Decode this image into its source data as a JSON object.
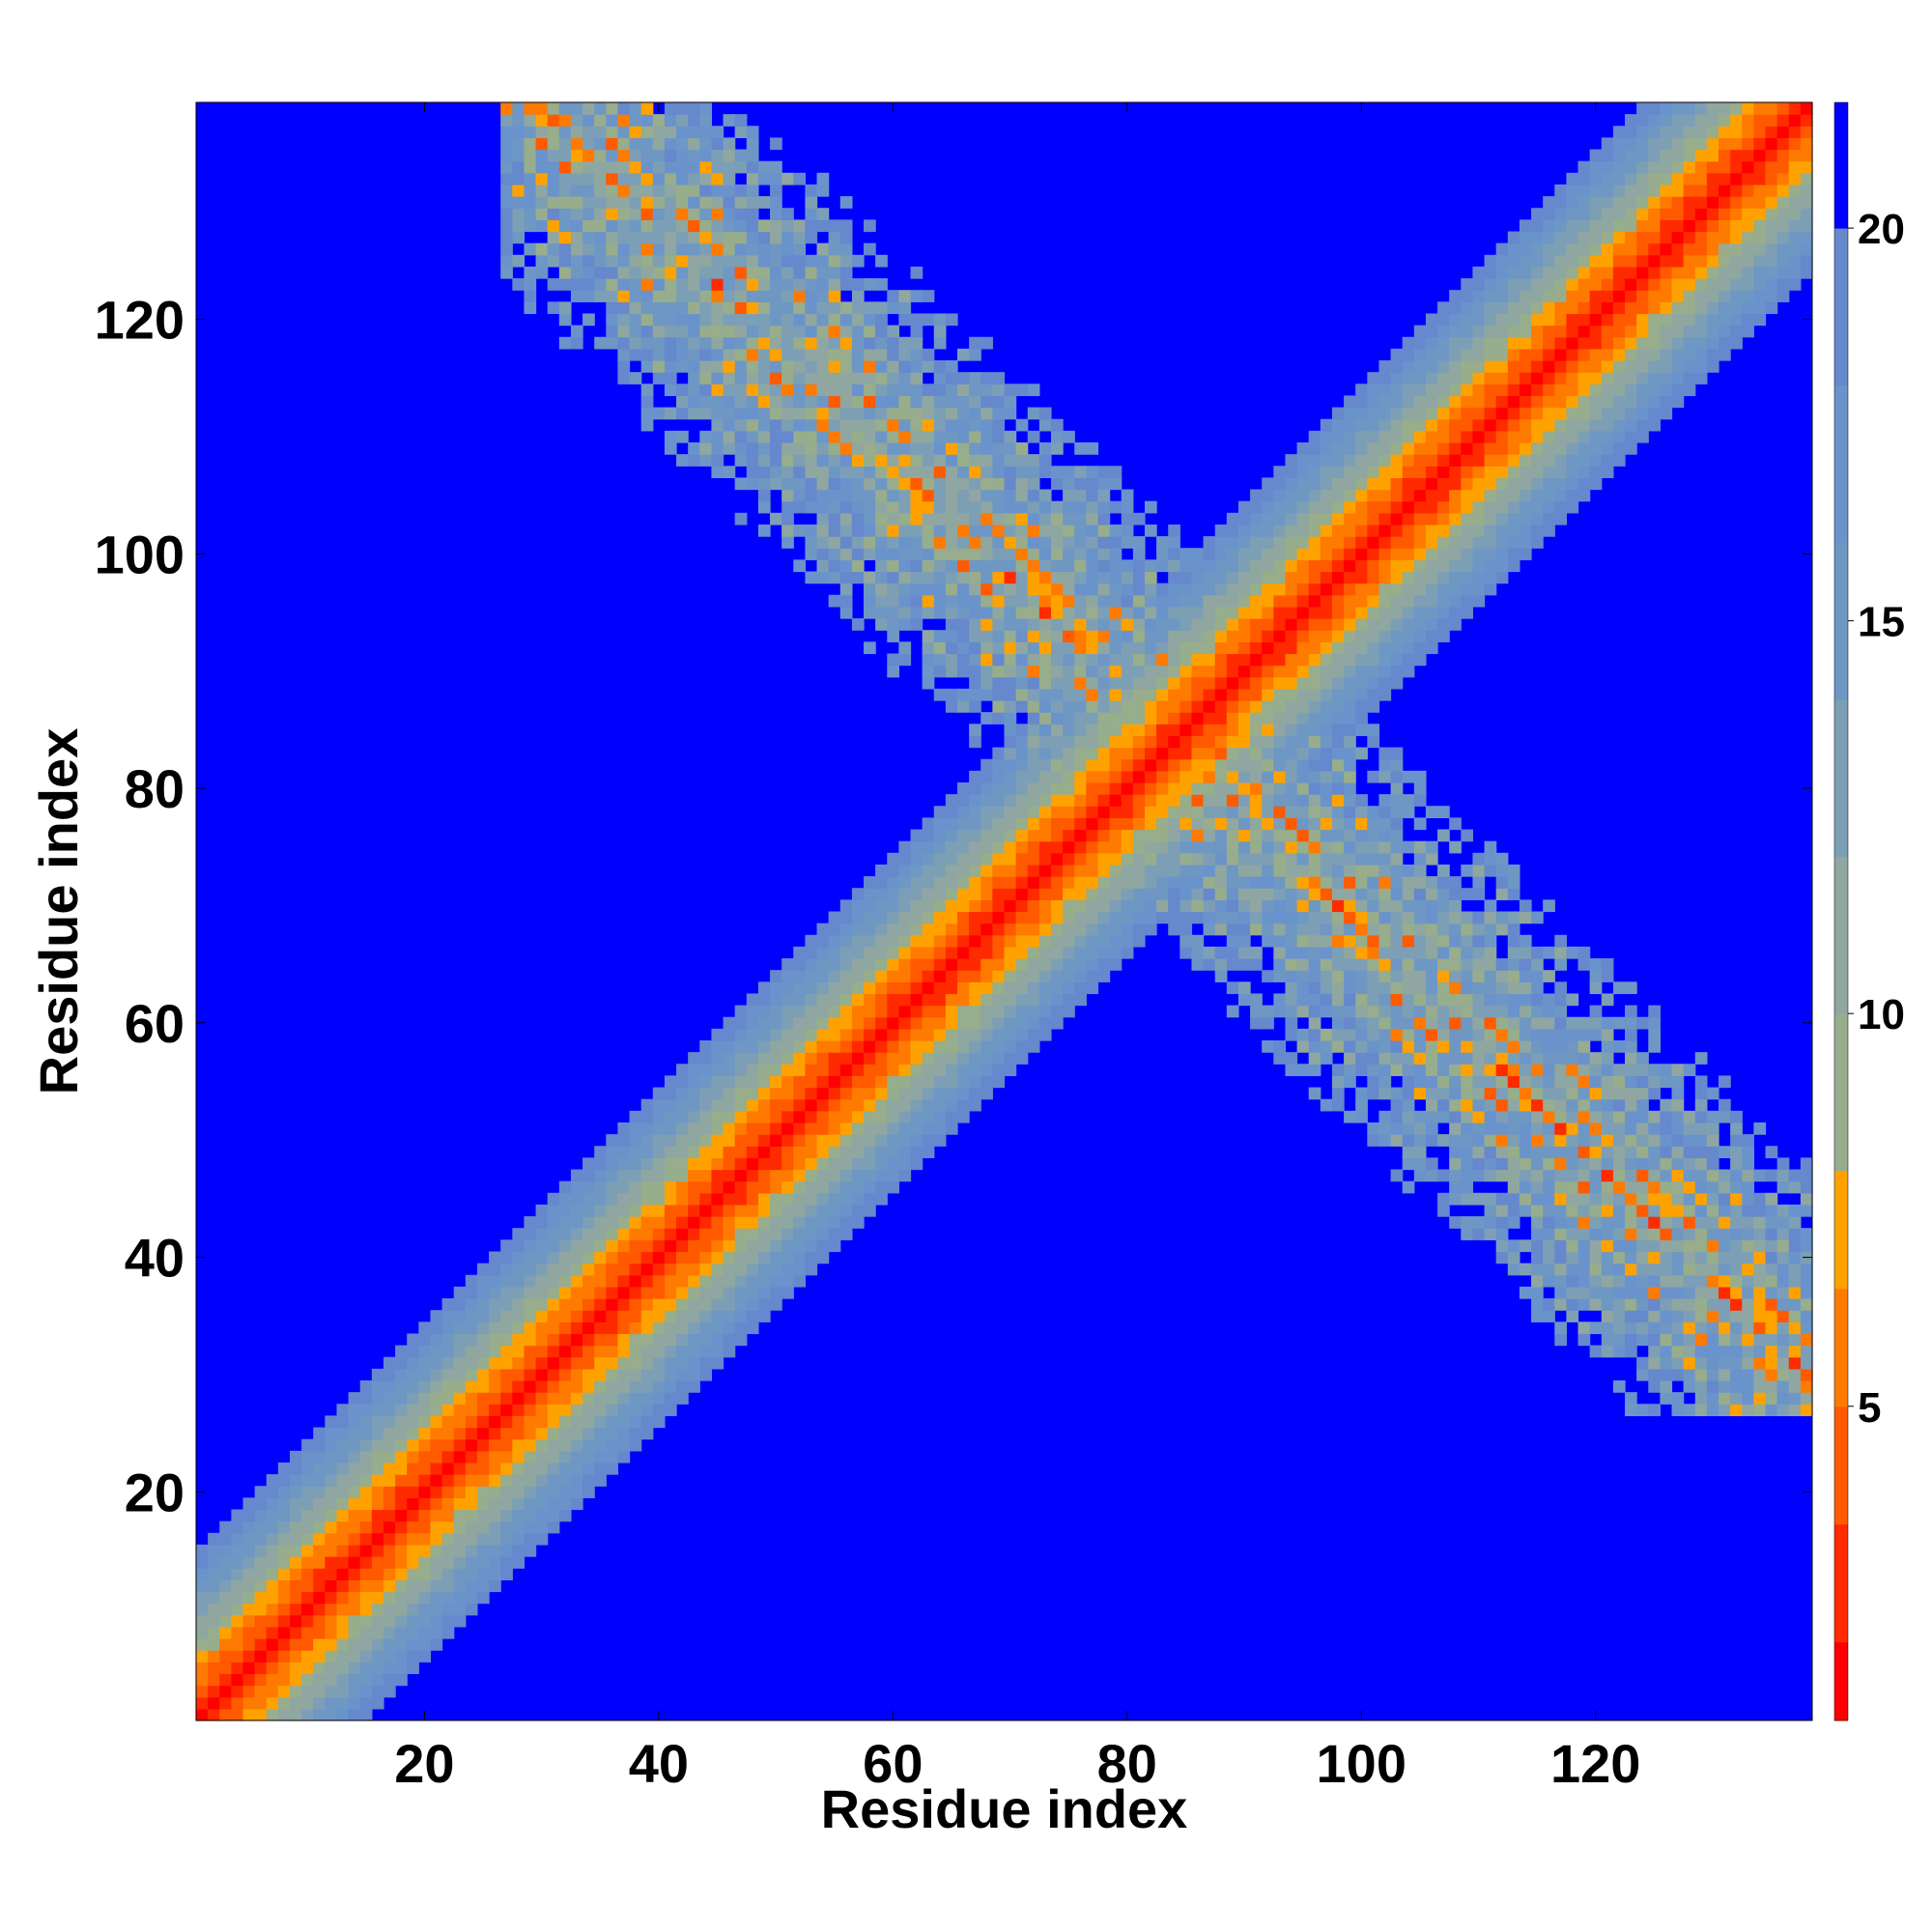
{
  "chart_data": {
    "type": "heatmap",
    "title": "",
    "xlabel": "Residue index",
    "ylabel": "Residue index",
    "x_range": [
      1,
      138
    ],
    "y_range": [
      1,
      138
    ],
    "x_ticks": [
      20,
      40,
      60,
      80,
      100,
      120
    ],
    "y_ticks": [
      20,
      40,
      60,
      80,
      100,
      120
    ],
    "colorbar": {
      "range": [
        1,
        21.6
      ],
      "ticks": [
        5,
        10,
        15,
        20
      ],
      "levels": [
        {
          "max": 2.0,
          "color": "#ff0000"
        },
        {
          "max": 3.5,
          "color": "#ff2a00"
        },
        {
          "max": 5.0,
          "color": "#ff5a00"
        },
        {
          "max": 6.5,
          "color": "#ff7a00"
        },
        {
          "max": 8.0,
          "color": "#ffa200"
        },
        {
          "max": 10.0,
          "color": "#97ad8c"
        },
        {
          "max": 12.0,
          "color": "#8fa7a0"
        },
        {
          "max": 14.0,
          "color": "#7d9fb6"
        },
        {
          "max": 16.0,
          "color": "#6e97c4"
        },
        {
          "max": 18.0,
          "color": "#6a93cc"
        },
        {
          "max": 20.0,
          "color": "#6688cc"
        },
        {
          "max": 21.6,
          "color": "#0000ff"
        }
      ],
      "background_color": "#0000ff"
    },
    "description_of_structure": {
      "main_diagonal": {
        "from": [
          1,
          1
        ],
        "to": [
          138,
          138
        ]
      },
      "anti_diagonal_band": {
        "from": [
          30,
          138
        ],
        "to": [
          137,
          27
        ],
        "crossing_near": [
          85,
          85
        ]
      }
    }
  }
}
